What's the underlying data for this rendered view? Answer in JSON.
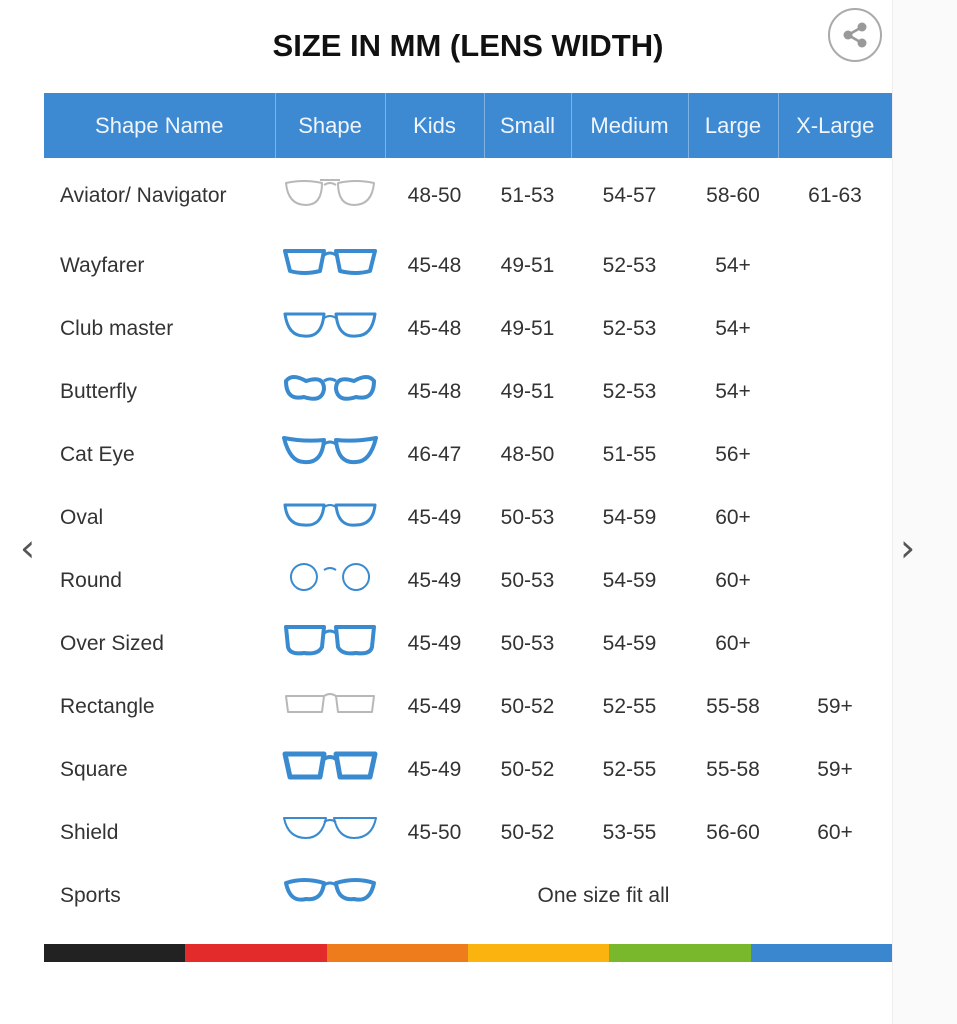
{
  "title": "SIZE IN MM (LENS WIDTH)",
  "share_icon": "share-icon",
  "columns": [
    "Shape Name",
    "Shape",
    "Kids",
    "Small",
    "Medium",
    "Large",
    "X-Large"
  ],
  "rows": [
    {
      "name": "Aviator/ Navigator",
      "icon": "aviator",
      "sizes": [
        "48-50",
        "51-53",
        "54-57",
        "58-60",
        "61-63"
      ]
    },
    {
      "name": "Wayfarer",
      "icon": "wayfarer",
      "sizes": [
        "45-48",
        "49-51",
        "52-53",
        "54+",
        ""
      ]
    },
    {
      "name": "Club master",
      "icon": "clubmaster",
      "sizes": [
        "45-48",
        "49-51",
        "52-53",
        "54+",
        ""
      ]
    },
    {
      "name": "Butterfly",
      "icon": "butterfly",
      "sizes": [
        "45-48",
        "49-51",
        "52-53",
        "54+",
        ""
      ]
    },
    {
      "name": "Cat Eye",
      "icon": "cateye",
      "sizes": [
        "46-47",
        "48-50",
        "51-55",
        "56+",
        ""
      ]
    },
    {
      "name": "Oval",
      "icon": "oval",
      "sizes": [
        "45-49",
        "50-53",
        "54-59",
        "60+",
        ""
      ]
    },
    {
      "name": "Round",
      "icon": "round",
      "sizes": [
        "45-49",
        "50-53",
        "54-59",
        "60+",
        ""
      ]
    },
    {
      "name": "Over Sized",
      "icon": "oversized",
      "sizes": [
        "45-49",
        "50-53",
        "54-59",
        "60+",
        ""
      ]
    },
    {
      "name": "Rectangle",
      "icon": "rectangle",
      "sizes": [
        "45-49",
        "50-52",
        "52-55",
        "55-58",
        "59+"
      ]
    },
    {
      "name": "Square",
      "icon": "square",
      "sizes": [
        "45-49",
        "50-52",
        "52-55",
        "55-58",
        "59+"
      ]
    },
    {
      "name": "Shield",
      "icon": "shield",
      "sizes": [
        "45-50",
        "50-52",
        "53-55",
        "56-60",
        "60+"
      ]
    },
    {
      "name": "Sports",
      "icon": "sports",
      "merged": "One size fit all"
    }
  ],
  "colors": {
    "header": "#3d8ad3",
    "frame_blue": "#3a8ad0",
    "frame_gray": "#b8b8b8"
  },
  "color_bar": [
    "#222222",
    "#e32b2b",
    "#ef7c1c",
    "#fbb40f",
    "#79b82c",
    "#3b87cf"
  ],
  "nav": {
    "prev_icon": "chevron-left-icon",
    "next_icon": "chevron-right-icon"
  }
}
